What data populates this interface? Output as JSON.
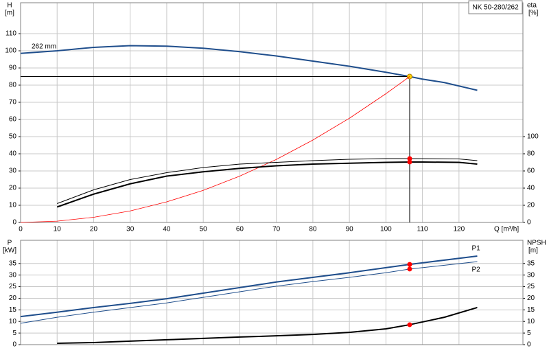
{
  "chart_data": [
    {
      "type": "line",
      "title": "NK 50-280/262",
      "y_label": "H",
      "y_unit": "[m]",
      "y2_label": "eta",
      "y2_unit": "[%]",
      "x_label": "Q [m³/h]",
      "xlim": [
        0,
        137.5
      ],
      "xticks": [
        0,
        10,
        20,
        30,
        40,
        50,
        60,
        70,
        80,
        90,
        100,
        110,
        120
      ],
      "xtick_labels": true,
      "ylim": [
        0,
        128
      ],
      "yticks": [
        0,
        10,
        20,
        30,
        40,
        50,
        60,
        70,
        80,
        90,
        100,
        110
      ],
      "y2lim": [
        0,
        256
      ],
      "y2ticks": [
        0,
        20,
        40,
        60,
        80,
        100
      ],
      "grid": true,
      "series": [
        {
          "name": "262 mm",
          "color": "#1f4e8c",
          "line_width": 2,
          "axis": "y",
          "x": [
            0,
            10,
            20,
            30,
            40,
            50,
            60,
            70,
            80,
            90,
            100,
            106.5,
            110,
            116,
            125
          ],
          "values": [
            98.5,
            100,
            102,
            103,
            102.7,
            101.5,
            99.5,
            97,
            94,
            91,
            87.5,
            85,
            83.5,
            81.5,
            77
          ],
          "duty": {
            "x": 106.5,
            "y": 85
          },
          "duty_color": "#ffd200",
          "duty_lines": true
        },
        {
          "color": "#ff0000",
          "line_width": 0.8,
          "axis": "y",
          "x": [
            0,
            10,
            20,
            30,
            40,
            50,
            60,
            70,
            80,
            90,
            100,
            106.5
          ],
          "values": [
            0,
            0.75,
            3,
            6.7,
            12,
            18.7,
            27,
            36.7,
            48,
            60.7,
            75,
            85
          ]
        },
        {
          "color": "#000000",
          "line_width": 1,
          "axis": "y2",
          "x": [
            10,
            20,
            30,
            40,
            50,
            60,
            70,
            80,
            90,
            100,
            106.5,
            120,
            125
          ],
          "values": [
            22,
            38,
            50,
            58,
            64,
            68,
            70,
            72,
            73.6,
            74.4,
            74.4,
            74,
            72
          ],
          "duty": {
            "x": 106.5,
            "y": 74.4
          },
          "duty_color": "#ff0000"
        },
        {
          "color": "#000000",
          "line_width": 2,
          "axis": "y2",
          "x": [
            10,
            20,
            30,
            40,
            50,
            60,
            70,
            80,
            90,
            100,
            106.5,
            110,
            120,
            125
          ],
          "values": [
            18,
            33,
            45,
            54,
            59,
            63,
            66,
            68,
            69,
            70,
            70.4,
            70.4,
            70,
            68
          ],
          "duty": {
            "x": 106.5,
            "y": 70.4
          },
          "duty_color": "#ff0000"
        }
      ]
    },
    {
      "type": "line",
      "y_label": "P",
      "y_unit": "[kW]",
      "y2_label": "NPSH",
      "y2_unit": "[m]",
      "xlim": [
        0,
        137.5
      ],
      "xticks": [
        0,
        10,
        20,
        30,
        40,
        50,
        60,
        70,
        80,
        90,
        100,
        110,
        120
      ],
      "xtick_labels": false,
      "ylim": [
        0,
        45
      ],
      "yticks": [
        0,
        5,
        10,
        15,
        20,
        25,
        30,
        35
      ],
      "y2lim": [
        0,
        45
      ],
      "y2ticks": [
        0,
        5,
        10,
        15,
        20,
        25,
        30,
        35
      ],
      "grid": true,
      "series": [
        {
          "name": "P1",
          "color": "#1f4e8c",
          "line_width": 2,
          "axis": "y",
          "x": [
            0,
            10,
            20,
            30,
            40,
            50,
            60,
            70,
            80,
            90,
            100,
            106.5,
            125
          ],
          "values": [
            12.1,
            14,
            16,
            17.8,
            19.8,
            22.2,
            24.6,
            27,
            29,
            31,
            33.2,
            34.6,
            38.2
          ],
          "duty": {
            "x": 106.5,
            "y": 34.6
          },
          "duty_color": "#ff0000"
        },
        {
          "name": "P2",
          "color": "#1f4e8c",
          "line_width": 1,
          "axis": "y",
          "x": [
            0,
            10,
            20,
            30,
            40,
            50,
            60,
            70,
            80,
            90,
            100,
            106.5,
            125
          ],
          "values": [
            9.2,
            11.8,
            14,
            16,
            18,
            20.4,
            22.8,
            25.2,
            27.2,
            29,
            31,
            32.6,
            35.8
          ],
          "duty": {
            "x": 106.5,
            "y": 32.6
          },
          "duty_color": "#ff0000"
        },
        {
          "color": "#000000",
          "line_width": 2,
          "axis": "y2",
          "x": [
            10,
            20,
            30,
            40,
            50,
            60,
            70,
            80,
            90,
            100,
            106.5,
            116,
            125
          ],
          "values": [
            0.6,
            0.9,
            1.5,
            2.1,
            2.7,
            3.3,
            3.8,
            4.4,
            5.3,
            6.8,
            8.6,
            11.8,
            16
          ],
          "duty": {
            "x": 106.5,
            "y": 8.6
          },
          "duty_color": "#ff0000"
        }
      ]
    }
  ]
}
